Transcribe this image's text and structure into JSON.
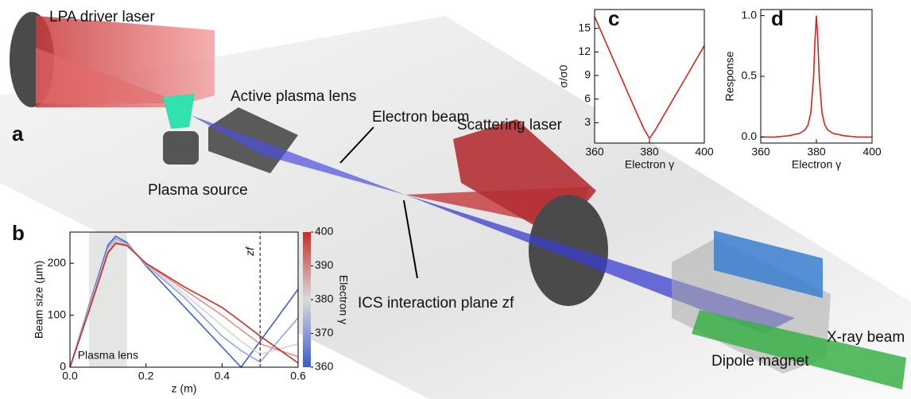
{
  "diagram": {
    "panel": "a",
    "labels": [
      "LPA driver laser",
      "Active plasma lens",
      "Plasma source",
      "Electron beam",
      "Scattering laser",
      "ICS interaction plane zf",
      "Dipole magnet",
      "X-ray beam"
    ]
  },
  "chart_data": [
    {
      "type": "line",
      "panel": "b",
      "x_label": "z (m)",
      "y_label": "Beam size (µm)",
      "x": [
        0,
        0.05,
        0.1,
        0.12,
        0.15,
        0.2,
        0.3,
        0.4,
        0.45,
        0.5,
        0.6
      ],
      "series": [
        {
          "name": "360",
          "color": "#3b5bd0",
          "values": [
            0,
            118,
            235,
            252,
            240,
            195,
            117,
            39,
            0,
            50,
            150
          ]
        },
        {
          "name": "370",
          "color": "#8da4e6",
          "values": [
            0,
            115,
            230,
            247,
            238,
            197,
            135,
            60,
            32,
            10,
            95
          ]
        },
        {
          "name": "380",
          "color": "#d8d3d6",
          "values": [
            0,
            112,
            225,
            243,
            236,
            198,
            142,
            80,
            50,
            25,
            45
          ]
        },
        {
          "name": "390",
          "color": "#e58f86",
          "values": [
            0,
            110,
            222,
            240,
            235,
            199,
            150,
            100,
            72,
            45,
            20
          ]
        },
        {
          "name": "400",
          "color": "#c62d25",
          "values": [
            0,
            108,
            220,
            238,
            234,
            200,
            155,
            115,
            88,
            60,
            8
          ]
        }
      ],
      "xlim": [
        0,
        0.6
      ],
      "ylim": [
        0,
        260
      ],
      "xticks": [
        {
          "value": 0,
          "label": "0.0"
        },
        {
          "value": 0.2,
          "label": "0.2"
        },
        {
          "value": 0.4,
          "label": "0.4"
        },
        {
          "value": 0.6,
          "label": "0.6"
        }
      ],
      "yticks": [
        0,
        100,
        200
      ],
      "shade": {
        "x": [
          0.05,
          0.15
        ],
        "label": "Plasma lens"
      },
      "vline": {
        "x": 0.5,
        "label": "zf"
      },
      "colorbar": {
        "label": "Electron γ",
        "lim": [
          360,
          400
        ],
        "ticks": [
          360,
          370,
          380,
          390,
          400
        ],
        "colors": [
          "#3b5bd0",
          "#dcdcdc",
          "#c62d25"
        ]
      }
    },
    {
      "type": "line",
      "panel": "c",
      "x_label": "Electron γ",
      "y_label": "σ/σ0",
      "x": [
        360,
        365,
        370,
        375,
        378,
        380,
        382,
        385,
        390,
        395,
        400
      ],
      "series": [
        {
          "name": "σ/σ0",
          "color": "#e0201b",
          "values": [
            16.5,
            12.5,
            8.5,
            4.5,
            2.2,
            1,
            2,
            3.8,
            6.8,
            9.8,
            12.8
          ]
        }
      ],
      "xlim": [
        360,
        400
      ],
      "ylim": [
        0.4,
        17.4
      ],
      "xticks": [
        360,
        380,
        400
      ],
      "yticks": [
        3,
        6,
        9,
        12,
        15
      ]
    },
    {
      "type": "line",
      "panel": "d",
      "x_label": "Electron γ",
      "y_label": "Response",
      "x": [
        360,
        365,
        370,
        374,
        376,
        377,
        378,
        379,
        379.5,
        380,
        380.5,
        381,
        382,
        383,
        384,
        386,
        390,
        395,
        400
      ],
      "series": [
        {
          "name": "Response",
          "color": "#e0201b",
          "values": [
            0,
            0,
            0.01,
            0.03,
            0.06,
            0.1,
            0.2,
            0.5,
            0.8,
            1,
            0.8,
            0.5,
            0.2,
            0.1,
            0.06,
            0.03,
            0.01,
            0,
            0
          ]
        }
      ],
      "xlim": [
        360,
        400
      ],
      "ylim": [
        -0.05,
        1.05
      ],
      "xticks": [
        360,
        380,
        400
      ],
      "yticks": [
        {
          "value": 0,
          "label": "0.0"
        },
        {
          "value": 0.5,
          "label": "0.5"
        },
        {
          "value": 1,
          "label": "1.0"
        }
      ]
    }
  ]
}
